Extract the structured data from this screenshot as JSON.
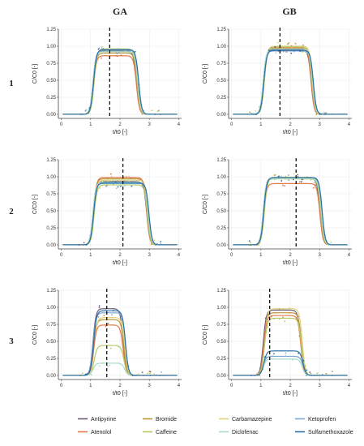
{
  "columns": [
    "GA",
    "GB"
  ],
  "rows": [
    "1",
    "2",
    "3"
  ],
  "legend": [
    {
      "name": "Antipyrine",
      "color": "#6b5b78"
    },
    {
      "name": "Bromide",
      "color": "#b8963a"
    },
    {
      "name": "Carbamazepine",
      "color": "#ddd37a"
    },
    {
      "name": "Ketoprofen",
      "color": "#7fa9d2"
    },
    {
      "name": "Atenolol",
      "color": "#e07a4a"
    },
    {
      "name": "Caffeine",
      "color": "#b9c96a"
    },
    {
      "name": "Diclofenac",
      "color": "#a9dcc8"
    },
    {
      "name": "Sulfamethoxazole",
      "color": "#2a6fa8"
    }
  ],
  "chart_data": [
    {
      "type": "line",
      "column": "GA",
      "row": "1",
      "xlabel": "t/t0 [-]",
      "ylabel": "C/C0 [-]",
      "xlim": [
        -0.1,
        4.1
      ],
      "ylim": [
        -0.06,
        1.25
      ],
      "x_ticks": [
        "0",
        "1",
        "2",
        "3",
        "4"
      ],
      "y_ticks": [
        "0.00",
        "0.25",
        "0.50",
        "0.75",
        "1.00",
        "1.25"
      ],
      "vline_x": 1.65,
      "rise": 1.1,
      "fall": 2.6,
      "series": [
        {
          "name": "Antipyrine",
          "plateau": 0.93
        },
        {
          "name": "Bromide",
          "plateau": 0.9
        },
        {
          "name": "Carbamazepine",
          "plateau": 0.95
        },
        {
          "name": "Ketoprofen",
          "plateau": 0.94
        },
        {
          "name": "Atenolol",
          "plateau": 0.86
        },
        {
          "name": "Caffeine",
          "plateau": 0.96
        },
        {
          "name": "Diclofenac",
          "plateau": 0.92
        },
        {
          "name": "Sulfamethoxazole",
          "plateau": 0.95
        }
      ]
    },
    {
      "type": "line",
      "column": "GB",
      "row": "1",
      "xlabel": "t/t0 [-]",
      "ylabel": "C/C0 [-]",
      "xlim": [
        -0.1,
        4.1
      ],
      "ylim": [
        -0.06,
        1.25
      ],
      "x_ticks": [
        "0",
        "1",
        "2",
        "3",
        "4"
      ],
      "y_ticks": [
        "0.00",
        "0.25",
        "0.50",
        "0.75",
        "1.00",
        "1.25"
      ],
      "vline_x": 1.65,
      "rise": 1.1,
      "fall": 2.75,
      "series": [
        {
          "name": "Antipyrine",
          "plateau": 0.95
        },
        {
          "name": "Bromide",
          "plateau": 0.97
        },
        {
          "name": "Carbamazepine",
          "plateau": 1.0
        },
        {
          "name": "Ketoprofen",
          "plateau": 0.93
        },
        {
          "name": "Atenolol",
          "plateau": 0.98
        },
        {
          "name": "Caffeine",
          "plateau": 0.99
        },
        {
          "name": "Diclofenac",
          "plateau": 0.96
        },
        {
          "name": "Sulfamethoxazole",
          "plateau": 0.94
        }
      ]
    },
    {
      "type": "line",
      "column": "GA",
      "row": "2",
      "xlabel": "t/t0 [-]",
      "ylabel": "C/C0 [-]",
      "xlim": [
        -0.1,
        4.1
      ],
      "ylim": [
        -0.06,
        1.25
      ],
      "x_ticks": [
        "0",
        "1",
        "2",
        "3",
        "4"
      ],
      "y_ticks": [
        "0.00",
        "0.25",
        "0.50",
        "0.75",
        "1.00",
        "1.25"
      ],
      "vline_x": 2.1,
      "rise": 1.1,
      "fall": 2.95,
      "series": [
        {
          "name": "Antipyrine",
          "plateau": 0.93
        },
        {
          "name": "Bromide",
          "plateau": 0.97
        },
        {
          "name": "Carbamazepine",
          "plateau": 0.95
        },
        {
          "name": "Ketoprofen",
          "plateau": 0.9
        },
        {
          "name": "Atenolol",
          "plateau": 0.99
        },
        {
          "name": "Caffeine",
          "plateau": 0.88
        },
        {
          "name": "Diclofenac",
          "plateau": 0.92
        },
        {
          "name": "Sulfamethoxazole",
          "plateau": 0.91
        }
      ]
    },
    {
      "type": "line",
      "column": "GB",
      "row": "2",
      "xlabel": "t/t0 [-]",
      "ylabel": "C/C0 [-]",
      "xlim": [
        -0.1,
        4.1
      ],
      "ylim": [
        -0.06,
        1.25
      ],
      "x_ticks": [
        "0",
        "1",
        "2",
        "3",
        "4"
      ],
      "y_ticks": [
        "0.00",
        "0.25",
        "0.50",
        "0.75",
        "1.00",
        "1.25"
      ],
      "vline_x": 2.2,
      "rise": 1.1,
      "fall": 3.05,
      "series": [
        {
          "name": "Antipyrine",
          "plateau": 0.98
        },
        {
          "name": "Bromide",
          "plateau": 0.97
        },
        {
          "name": "Carbamazepine",
          "plateau": 0.99
        },
        {
          "name": "Ketoprofen",
          "plateau": 0.98
        },
        {
          "name": "Atenolol",
          "plateau": 0.9
        },
        {
          "name": "Caffeine",
          "plateau": 0.98
        },
        {
          "name": "Diclofenac",
          "plateau": 0.97
        },
        {
          "name": "Sulfamethoxazole",
          "plateau": 0.99
        }
      ]
    },
    {
      "type": "line",
      "column": "GA",
      "row": "3",
      "xlabel": "t/t0 [-]",
      "ylabel": "C/C0 [-]",
      "xlim": [
        -0.1,
        4.1
      ],
      "ylim": [
        -0.06,
        1.25
      ],
      "x_ticks": [
        "0",
        "1",
        "2",
        "3",
        "4"
      ],
      "y_ticks": [
        "0.00",
        "0.25",
        "0.50",
        "0.75",
        "1.00",
        "1.25"
      ],
      "vline_x": 1.55,
      "rise": 1.1,
      "fall": 2.15,
      "series": [
        {
          "name": "Antipyrine",
          "plateau": 0.98
        },
        {
          "name": "Bromide",
          "plateau": 0.82
        },
        {
          "name": "Carbamazepine",
          "plateau": 0.85
        },
        {
          "name": "Ketoprofen",
          "plateau": 0.92
        },
        {
          "name": "Atenolol",
          "plateau": 0.74
        },
        {
          "name": "Caffeine",
          "plateau": 0.44
        },
        {
          "name": "Diclofenac",
          "plateau": 0.18
        },
        {
          "name": "Sulfamethoxazole",
          "plateau": 0.95
        }
      ]
    },
    {
      "type": "line",
      "column": "GB",
      "row": "3",
      "xlabel": "t/t0 [-]",
      "ylabel": "C/C0 [-]",
      "xlim": [
        -0.1,
        4.1
      ],
      "ylim": [
        -0.06,
        1.25
      ],
      "x_ticks": [
        "0",
        "1",
        "2",
        "3",
        "4"
      ],
      "y_ticks": [
        "0.00",
        "0.25",
        "0.50",
        "0.75",
        "1.00",
        "1.25"
      ],
      "vline_x": 1.3,
      "rise": 1.1,
      "fall": 2.4,
      "series": [
        {
          "name": "Antipyrine",
          "plateau": 0.96
        },
        {
          "name": "Bromide",
          "plateau": 0.92
        },
        {
          "name": "Carbamazepine",
          "plateau": 0.98
        },
        {
          "name": "Ketoprofen",
          "plateau": 0.28
        },
        {
          "name": "Atenolol",
          "plateau": 0.88
        },
        {
          "name": "Caffeine",
          "plateau": 0.84
        },
        {
          "name": "Diclofenac",
          "plateau": 0.24
        },
        {
          "name": "Sulfamethoxazole",
          "plateau": 0.36
        }
      ]
    }
  ]
}
